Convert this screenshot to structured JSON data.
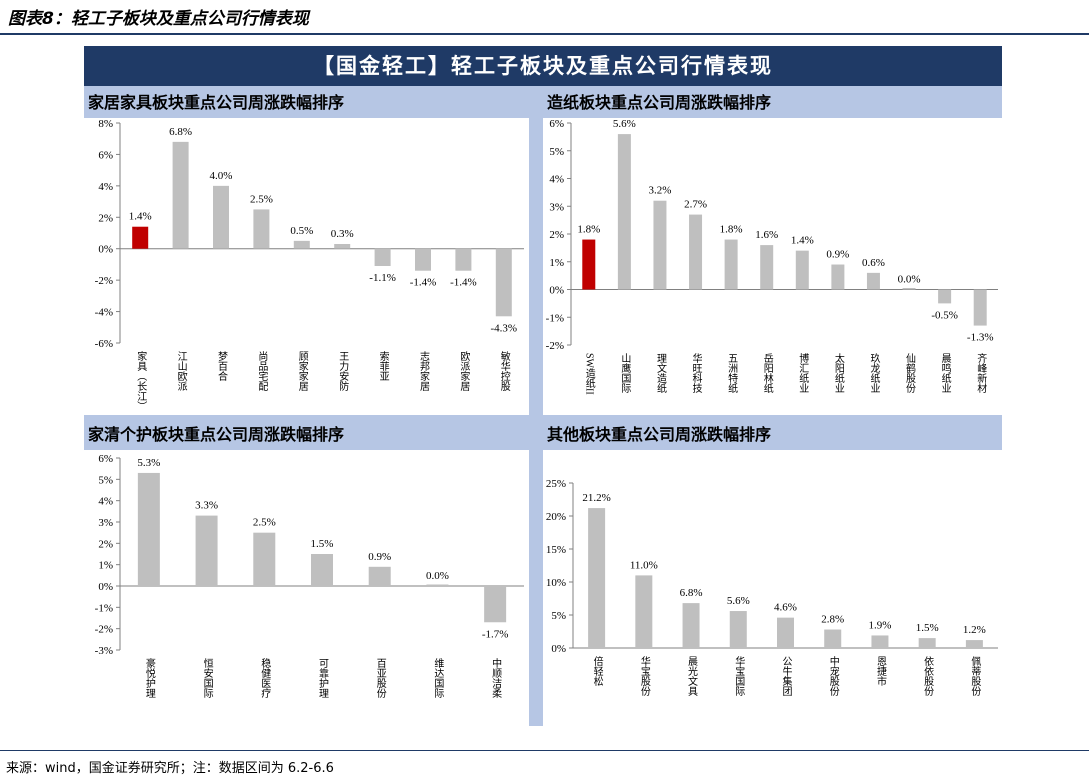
{
  "figure_title": "图表8：轻工子板块及重点公司行情表现",
  "banner": "【国金轻工】轻工子板块及重点公司行情表现",
  "source_note": "来源：wind，国金证券研究所；注：数据区间为 6.2-6.6",
  "colors": {
    "bar": "#bfbfbf",
    "highlight": "#c00000",
    "panel_head": "#b6c6e4",
    "banner": "#1f3a66"
  },
  "chart_data": [
    {
      "type": "bar",
      "title": "家居家具板块重点公司周涨跌幅排序",
      "categories": [
        "家具（长江）",
        "江山欧派",
        "梦百合",
        "尚品宅配",
        "顾家家居",
        "王力安防",
        "索菲亚",
        "志邦家居",
        "欧派家居",
        "敏华控股"
      ],
      "values": [
        1.4,
        6.8,
        4.0,
        2.5,
        0.5,
        0.3,
        -1.1,
        -1.4,
        -1.4,
        -4.3
      ],
      "labels": [
        "1.4%",
        "6.8%",
        "4.0%",
        "2.5%",
        "0.5%",
        "0.3%",
        "-1.1%",
        "-1.4%",
        "-1.4%",
        "-4.3%"
      ],
      "highlight_index": 0,
      "ylim": [
        -6,
        8
      ],
      "yticks": [
        -6,
        -4,
        -2,
        0,
        2,
        4,
        6,
        8
      ],
      "ytick_labels": [
        "-6%",
        "-4%",
        "-2%",
        "0%",
        "2%",
        "4%",
        "6%",
        "8%"
      ]
    },
    {
      "type": "bar",
      "title": "造纸板块重点公司周涨跌幅排序",
      "categories": [
        "SW造纸II",
        "山鹰国际",
        "理文造纸",
        "华旺科技",
        "五洲特纸",
        "岳阳林纸",
        "博汇纸业",
        "太阳纸业",
        "玖龙纸业",
        "仙鹤股份",
        "晨鸣纸业",
        "齐峰新材"
      ],
      "values": [
        1.8,
        5.6,
        3.2,
        2.7,
        1.8,
        1.6,
        1.4,
        0.9,
        0.6,
        0.0,
        -0.5,
        -1.3
      ],
      "labels": [
        "1.8%",
        "5.6%",
        "3.2%",
        "2.7%",
        "1.8%",
        "1.6%",
        "1.4%",
        "0.9%",
        "0.6%",
        "0.0%",
        "-0.5%",
        "-1.3%"
      ],
      "highlight_index": 0,
      "ylim": [
        -2,
        6
      ],
      "yticks": [
        -2,
        -1,
        0,
        1,
        2,
        3,
        4,
        5,
        6
      ],
      "ytick_labels": [
        "-2%",
        "-1%",
        "0%",
        "1%",
        "2%",
        "3%",
        "4%",
        "5%",
        "6%"
      ]
    },
    {
      "type": "bar",
      "title": "家清个护板块重点公司周涨跌幅排序",
      "categories": [
        "豪悦护理",
        "恒安国际",
        "稳健医疗",
        "可靠护理",
        "百亚股份",
        "维达国际",
        "中顺洁柔"
      ],
      "values": [
        5.3,
        3.3,
        2.5,
        1.5,
        0.9,
        0.0,
        -1.7
      ],
      "labels": [
        "5.3%",
        "3.3%",
        "2.5%",
        "1.5%",
        "0.9%",
        "0.0%",
        "-1.7%"
      ],
      "highlight_index": -1,
      "ylim": [
        -3,
        6
      ],
      "yticks": [
        -3,
        -2,
        -1,
        0,
        1,
        2,
        3,
        4,
        5,
        6
      ],
      "ytick_labels": [
        "-3%",
        "-2%",
        "-1%",
        "0%",
        "1%",
        "2%",
        "3%",
        "4%",
        "5%",
        "6%"
      ]
    },
    {
      "type": "bar",
      "title": "其他板块重点公司周涨跌幅排序",
      "categories": [
        "倍轻松",
        "华宝股份",
        "晨光文具",
        "华宝国际",
        "公牛集团",
        "中宠股份",
        "恩捷市",
        "依依股份",
        "佩蒂股份"
      ],
      "values": [
        21.2,
        11.0,
        6.8,
        5.6,
        4.6,
        2.8,
        1.9,
        1.5,
        1.2
      ],
      "labels": [
        "21.2%",
        "11.0%",
        "6.8%",
        "5.6%",
        "4.6%",
        "2.8%",
        "1.9%",
        "1.5%",
        "1.2%"
      ],
      "highlight_index": -1,
      "ylim": [
        0,
        25
      ],
      "yticks": [
        0,
        5,
        10,
        15,
        20,
        25
      ],
      "ytick_labels": [
        "0%",
        "5%",
        "10%",
        "15%",
        "20%",
        "25%"
      ]
    }
  ]
}
